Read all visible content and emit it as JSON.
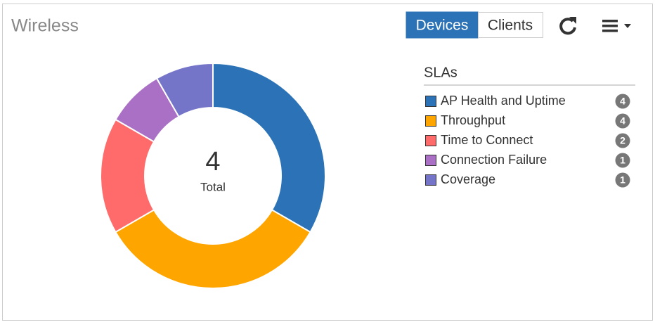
{
  "header": {
    "title": "Wireless",
    "tabs": [
      "Devices",
      "Clients"
    ]
  },
  "chart_data": {
    "type": "donut",
    "categories": [
      "AP Health and Uptime",
      "Throughput",
      "Time to Connect",
      "Connection Failure",
      "Coverage"
    ],
    "values": [
      4,
      4,
      2,
      1,
      1
    ],
    "colors": [
      "#2b73b6",
      "#ffa500",
      "#ff6b6b",
      "#a970c6",
      "#7474c9"
    ],
    "center_value": 4,
    "center_label": "Total",
    "legend_title": "SLAs"
  }
}
